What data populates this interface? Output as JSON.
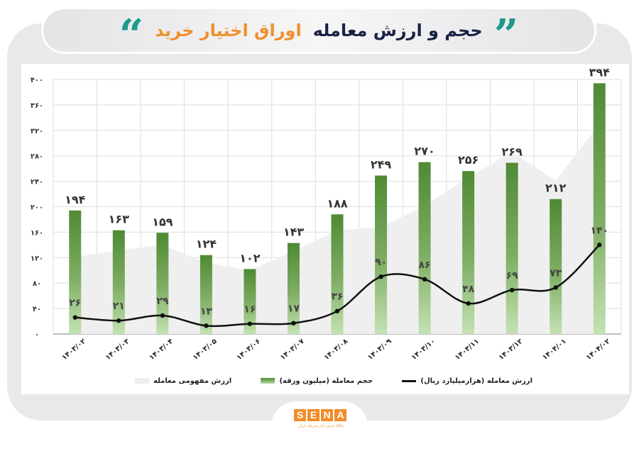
{
  "title": {
    "main": "حجم و ارزش معامله",
    "accent": "اوراق اختیار خرید",
    "quote_left": "“",
    "quote_right": "”"
  },
  "legend": {
    "line_label": "ارزش معامله (هزارمیلیارد ریال)",
    "bar_label": "حجم معامله (میلیون ورقه)",
    "area_label": "ارزش مفهومی معامله"
  },
  "logo": {
    "letters": [
      "S",
      "E",
      "N",
      "A"
    ],
    "subtitle": "پایگاه خبری بازار سرمایه ایران"
  },
  "colors": {
    "bar_top": "#4f8a34",
    "bar_bottom": "#c4e2b3",
    "line": "#111111",
    "area": "#efefef",
    "grid": "#dddddd",
    "title_main": "#1b2344",
    "title_accent": "#f0902a",
    "quote": "#1a9a8a",
    "brand": "#f28c28"
  },
  "chart_data": {
    "type": "bar",
    "title": "حجم و ارزش معامله اوراق اختیار خرید",
    "xlabel": "",
    "ylabel": "",
    "ylim": [
      0,
      400
    ],
    "yticks": [
      "۰",
      "۴۰",
      "۸۰",
      "۱۲۰",
      "۱۶۰",
      "۲۰۰",
      "۲۴۰",
      "۲۸۰",
      "۳۲۰",
      "۳۶۰",
      "۴۰۰"
    ],
    "grid": true,
    "legend_position": "bottom",
    "categories": [
      "۱۴۰۳/۰۲",
      "۱۴۰۳/۰۳",
      "۱۴۰۳/۰۴",
      "۱۴۰۳/۰۵",
      "۱۴۰۳/۰۶",
      "۱۴۰۳/۰۷",
      "۱۴۰۳/۰۸",
      "۱۴۰۳/۰۹",
      "۱۴۰۳/۱۰",
      "۱۴۰۳/۱۱",
      "۱۴۰۳/۱۲",
      "۱۴۰۴/۰۱",
      "۱۴۰۴/۰۲"
    ],
    "series": [
      {
        "name": "حجم معامله (میلیون ورقه)",
        "type": "bar",
        "values": [
          194,
          163,
          159,
          124,
          102,
          143,
          188,
          249,
          270,
          256,
          269,
          212,
          394
        ],
        "labels": [
          "۱۹۴",
          "۱۶۳",
          "۱۵۹",
          "۱۲۴",
          "۱۰۲",
          "۱۴۳",
          "۱۸۸",
          "۲۴۹",
          "۲۷۰",
          "۲۵۶",
          "۲۶۹",
          "۲۱۲",
          "۳۹۴"
        ]
      },
      {
        "name": "ارزش معامله (هزارمیلیارد ریال)",
        "type": "line",
        "values": [
          26,
          21,
          29,
          13,
          16,
          17,
          36,
          90,
          86,
          48,
          69,
          73,
          140
        ],
        "labels": [
          "۲۶",
          "۲۱",
          "۲۹",
          "۱۳",
          "۱۶",
          "۱۷",
          "۳۶",
          "۹۰",
          "۸۶",
          "۴۸",
          "۶۹",
          "۷۳",
          "۱۴۰"
        ]
      },
      {
        "name": "ارزش مفهومی معامله",
        "type": "area",
        "values": [
          121,
          132,
          140,
          112,
          100,
          130,
          163,
          168,
          202,
          246,
          286,
          241,
          330
        ]
      }
    ]
  }
}
